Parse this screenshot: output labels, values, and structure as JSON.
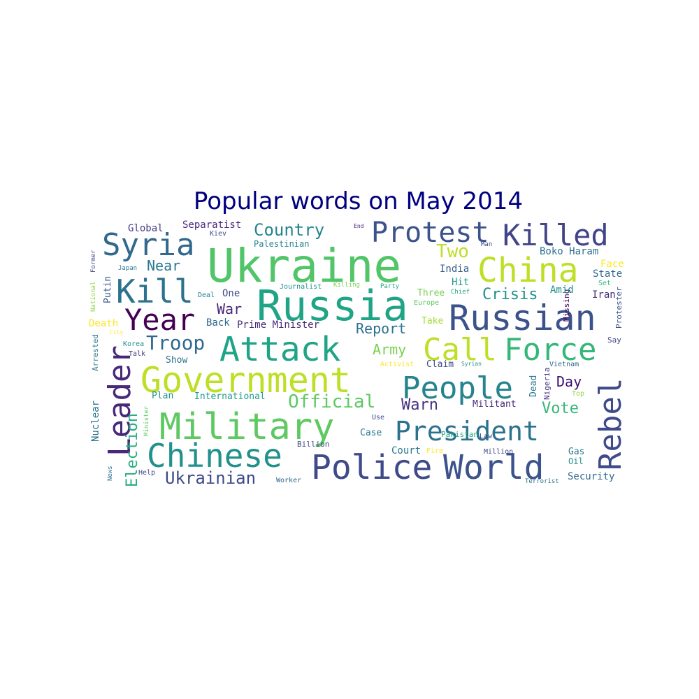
{
  "chart_data": {
    "type": "wordcloud",
    "title": "Popular words on May 2014",
    "words": [
      {
        "text": "Ukraine",
        "color": "#52c569"
      },
      {
        "text": "Russia",
        "color": "#20a486"
      },
      {
        "text": "Killed",
        "color": "#414487"
      },
      {
        "text": "Russian",
        "color": "#3b528b"
      },
      {
        "text": "Government",
        "color": "#bddf26"
      },
      {
        "text": "Military",
        "color": "#5ec962"
      },
      {
        "text": "Police",
        "color": "#3e4a89"
      },
      {
        "text": "World",
        "color": "#3b528b"
      },
      {
        "text": "Protest",
        "color": "#3b528b"
      },
      {
        "text": "China",
        "color": "#bddf26"
      },
      {
        "text": "Attack",
        "color": "#20a486"
      },
      {
        "text": "President",
        "color": "#2c728e"
      },
      {
        "text": "Call",
        "color": "#bddf26"
      },
      {
        "text": "Force",
        "color": "#35b779"
      },
      {
        "text": "People",
        "color": "#25848e"
      },
      {
        "text": "Chinese",
        "color": "#21918c"
      },
      {
        "text": "Rebel",
        "color": "#3e4a89"
      },
      {
        "text": "Leader",
        "color": "#482878"
      },
      {
        "text": "Syria",
        "color": "#31688e"
      },
      {
        "text": "Kill",
        "color": "#2c728e"
      },
      {
        "text": "Year",
        "color": "#440154"
      },
      {
        "text": "Troop",
        "color": "#31688e"
      },
      {
        "text": "Official",
        "color": "#5ec962"
      },
      {
        "text": "Ukrainian",
        "color": "#3e4a89"
      },
      {
        "text": "Country",
        "color": "#25848e"
      },
      {
        "text": "Election",
        "color": "#28ae80"
      },
      {
        "text": "Two",
        "color": "#bddf26"
      },
      {
        "text": "Crisis",
        "color": "#21918c"
      },
      {
        "text": "Report",
        "color": "#2c728e"
      },
      {
        "text": "Army",
        "color": "#7ad151"
      },
      {
        "text": "Warn",
        "color": "#46327e"
      },
      {
        "text": "Vote",
        "color": "#35b779"
      },
      {
        "text": "Day",
        "color": "#3b0f70"
      },
      {
        "text": "Near",
        "color": "#2a788e"
      },
      {
        "text": "War",
        "color": "#482878"
      },
      {
        "text": "Missing",
        "color": "#440154"
      },
      {
        "text": "Separatist",
        "color": "#482878"
      },
      {
        "text": "Palestinian",
        "color": "#25848e"
      },
      {
        "text": "Global",
        "color": "#433e85"
      },
      {
        "text": "Kiev",
        "color": "#3e4a89"
      },
      {
        "text": "End",
        "color": "#482878"
      },
      {
        "text": "Man",
        "color": "#3e4a89"
      },
      {
        "text": "Boko Haram",
        "color": "#2c728e"
      },
      {
        "text": "State",
        "color": "#31688e"
      },
      {
        "text": "Face",
        "color": "#fde725"
      },
      {
        "text": "Set",
        "color": "#35b779"
      },
      {
        "text": "Iran",
        "color": "#472c7a"
      },
      {
        "text": "Protester",
        "color": "#3b528b"
      },
      {
        "text": "Say",
        "color": "#3e4a89"
      },
      {
        "text": "Amid",
        "color": "#21918c"
      },
      {
        "text": "Hit",
        "color": "#1e9c89"
      },
      {
        "text": "India",
        "color": "#355f8d"
      },
      {
        "text": "Three",
        "color": "#7ad151"
      },
      {
        "text": "Chief",
        "color": "#22a884"
      },
      {
        "text": "Europe",
        "color": "#5ec962"
      },
      {
        "text": "Take",
        "color": "#a5db36"
      },
      {
        "text": "Journalist",
        "color": "#21918c"
      },
      {
        "text": "Killing",
        "color": "#7ad151"
      },
      {
        "text": "Party",
        "color": "#22a884"
      },
      {
        "text": "One",
        "color": "#3e4a89"
      },
      {
        "text": "Deal",
        "color": "#25848e"
      },
      {
        "text": "Back",
        "color": "#31688e"
      },
      {
        "text": "Prime Minister",
        "color": "#482878"
      },
      {
        "text": "Japan",
        "color": "#2a788e"
      },
      {
        "text": "Putin",
        "color": "#39568c"
      },
      {
        "text": "Death",
        "color": "#fde725"
      },
      {
        "text": "City",
        "color": "#fde725"
      },
      {
        "text": "Korea",
        "color": "#21918c"
      },
      {
        "text": "Talk",
        "color": "#453781"
      },
      {
        "text": "Show",
        "color": "#2c728e"
      },
      {
        "text": "Arrested",
        "color": "#2a788e"
      },
      {
        "text": "Nuclear",
        "color": "#2c728e"
      },
      {
        "text": "National",
        "color": "#90d743"
      },
      {
        "text": "Former",
        "color": "#3e4a89"
      },
      {
        "text": "News",
        "color": "#2c728e"
      },
      {
        "text": "Help",
        "color": "#3e4a89"
      },
      {
        "text": "Minister",
        "color": "#5ec962"
      },
      {
        "text": "Plan",
        "color": "#21918c"
      },
      {
        "text": "International",
        "color": "#1f9e89"
      },
      {
        "text": "Worker",
        "color": "#31688e"
      },
      {
        "text": "Billion",
        "color": "#3e4a89"
      },
      {
        "text": "Case",
        "color": "#2a788e"
      },
      {
        "text": "Use",
        "color": "#3e4a89"
      },
      {
        "text": "Court",
        "color": "#2a788e"
      },
      {
        "text": "Fire",
        "color": "#fde725"
      },
      {
        "text": "Pakistan",
        "color": "#22a884"
      },
      {
        "text": "Law",
        "color": "#3e4a89"
      },
      {
        "text": "Million",
        "color": "#3e4a89"
      },
      {
        "text": "Militant",
        "color": "#482878"
      },
      {
        "text": "Claim",
        "color": "#3e4a89"
      },
      {
        "text": "Syrian",
        "color": "#21918c"
      },
      {
        "text": "Activist",
        "color": "#fde725"
      },
      {
        "text": "Dead",
        "color": "#2a788e"
      },
      {
        "text": "Nigeria",
        "color": "#46327e"
      },
      {
        "text": "Vietnam",
        "color": "#31688e"
      },
      {
        "text": "Top",
        "color": "#8fd744"
      },
      {
        "text": "Gas",
        "color": "#2a788e"
      },
      {
        "text": "Oil",
        "color": "#21918c"
      },
      {
        "text": "Security",
        "color": "#31688e"
      },
      {
        "text": "Terrorist",
        "color": "#2c728e"
      }
    ]
  }
}
